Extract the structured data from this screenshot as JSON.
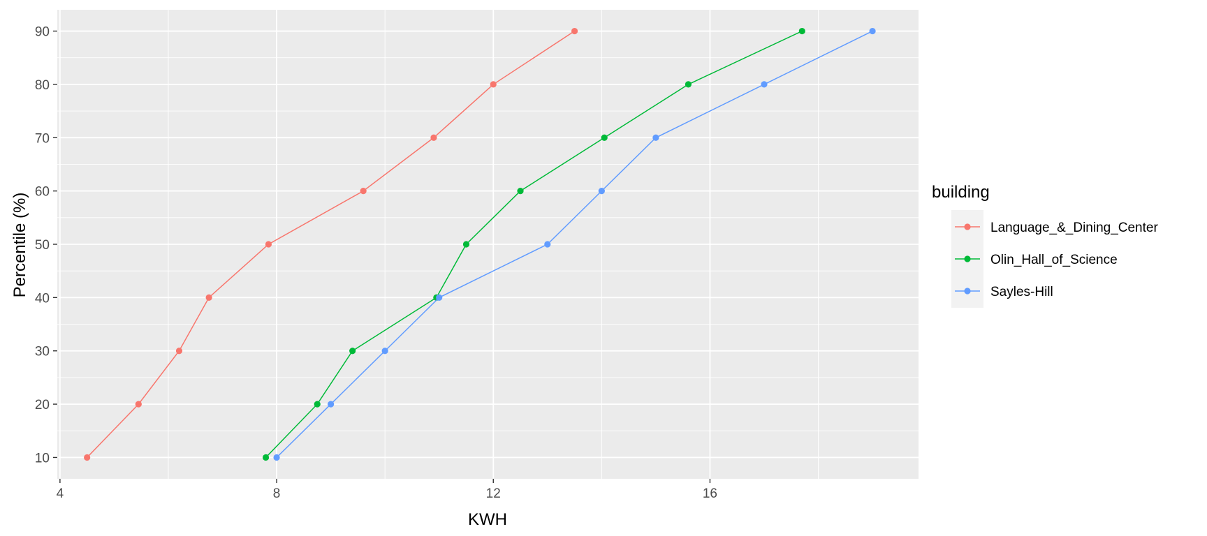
{
  "chart_data": {
    "type": "line",
    "xlabel": "KWH",
    "ylabel": "Percentile (%)",
    "xlim": [
      3.95,
      19.85
    ],
    "ylim": [
      6,
      94
    ],
    "x_ticks": [
      4,
      8,
      12,
      16
    ],
    "y_ticks": [
      10,
      20,
      30,
      40,
      50,
      60,
      70,
      80,
      90
    ],
    "x_minor_ticks": [
      6,
      10,
      14,
      18
    ],
    "y_minor_ticks": [
      15,
      25,
      35,
      45,
      55,
      65,
      75,
      85
    ],
    "grid": true,
    "panel_background": "#EBEBEB",
    "legend": {
      "title": "building",
      "position": "right"
    },
    "series": [
      {
        "name": "Language_&_Dining_Center",
        "color": "#F8766D",
        "x": [
          4.5,
          5.45,
          6.2,
          6.75,
          7.85,
          9.6,
          10.9,
          12.0,
          13.5
        ],
        "y": [
          10,
          20,
          30,
          40,
          50,
          60,
          70,
          80,
          90
        ]
      },
      {
        "name": "Olin_Hall_of_Science",
        "color": "#00BA38",
        "x": [
          7.8,
          8.75,
          9.4,
          10.95,
          11.5,
          12.5,
          14.05,
          15.6,
          17.7
        ],
        "y": [
          10,
          20,
          30,
          40,
          50,
          60,
          70,
          80,
          90
        ]
      },
      {
        "name": "Sayles-Hill",
        "color": "#619CFF",
        "x": [
          8.0,
          9.0,
          10.0,
          11.0,
          13.0,
          14.0,
          15.0,
          17.0,
          19.0
        ],
        "y": [
          10,
          20,
          30,
          40,
          50,
          60,
          70,
          80,
          90
        ]
      }
    ]
  }
}
